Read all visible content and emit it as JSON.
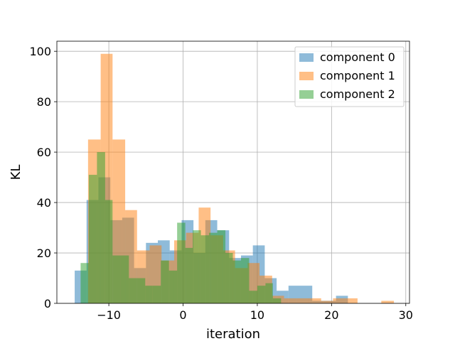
{
  "chart_data": {
    "type": "bar",
    "subtype": "overlapping-histogram",
    "title": "",
    "xlabel": "iteration",
    "ylabel": "KL",
    "xlim": [
      -17,
      30.5
    ],
    "ylim": [
      0,
      104
    ],
    "xticks": [
      -10,
      0,
      10,
      20,
      30
    ],
    "xtick_labels": [
      "−10",
      "0",
      "10",
      "20",
      "30"
    ],
    "yticks": [
      0,
      20,
      40,
      60,
      80,
      100
    ],
    "ytick_labels": [
      "0",
      "20",
      "40",
      "60",
      "80",
      "100"
    ],
    "grid": true,
    "legend_position": "top-right",
    "bar_alpha": 0.5,
    "series": [
      {
        "name": "component 0",
        "color": "#1f77b4",
        "bins": [
          {
            "x0": -14.6,
            "x1": -13.0,
            "y": 13
          },
          {
            "x0": -13.0,
            "x1": -11.4,
            "y": 41
          },
          {
            "x0": -11.4,
            "x1": -9.8,
            "y": 50
          },
          {
            "x0": -9.8,
            "x1": -8.2,
            "y": 33
          },
          {
            "x0": -8.2,
            "x1": -6.6,
            "y": 34
          },
          {
            "x0": -6.6,
            "x1": -5.0,
            "y": 14
          },
          {
            "x0": -5.0,
            "x1": -3.4,
            "y": 24
          },
          {
            "x0": -3.4,
            "x1": -1.8,
            "y": 25
          },
          {
            "x0": -1.8,
            "x1": -0.2,
            "y": 21
          },
          {
            "x0": -0.2,
            "x1": 1.4,
            "y": 33
          },
          {
            "x0": 1.4,
            "x1": 3.0,
            "y": 20
          },
          {
            "x0": 3.0,
            "x1": 4.6,
            "y": 33
          },
          {
            "x0": 4.6,
            "x1": 6.2,
            "y": 29
          },
          {
            "x0": 6.2,
            "x1": 7.8,
            "y": 18
          },
          {
            "x0": 7.8,
            "x1": 9.4,
            "y": 19
          },
          {
            "x0": 9.4,
            "x1": 11.0,
            "y": 23
          },
          {
            "x0": 11.0,
            "x1": 12.6,
            "y": 10
          },
          {
            "x0": 12.6,
            "x1": 14.2,
            "y": 5
          },
          {
            "x0": 14.2,
            "x1": 15.8,
            "y": 7
          },
          {
            "x0": 15.8,
            "x1": 17.4,
            "y": 7
          },
          {
            "x0": 17.4,
            "x1": 19.0,
            "y": 1
          },
          {
            "x0": 19.0,
            "x1": 20.6,
            "y": 1
          },
          {
            "x0": 20.6,
            "x1": 22.2,
            "y": 3
          }
        ]
      },
      {
        "name": "component 1",
        "color": "#ff7f0e",
        "bins": [
          {
            "x0": -12.8,
            "x1": -11.1,
            "y": 65
          },
          {
            "x0": -11.1,
            "x1": -9.5,
            "y": 99
          },
          {
            "x0": -9.5,
            "x1": -7.8,
            "y": 65
          },
          {
            "x0": -7.8,
            "x1": -6.2,
            "y": 37
          },
          {
            "x0": -6.2,
            "x1": -4.5,
            "y": 21
          },
          {
            "x0": -4.5,
            "x1": -2.9,
            "y": 23
          },
          {
            "x0": -2.9,
            "x1": -1.2,
            "y": 17
          },
          {
            "x0": -1.2,
            "x1": 0.4,
            "y": 25
          },
          {
            "x0": 0.4,
            "x1": 2.1,
            "y": 28
          },
          {
            "x0": 2.1,
            "x1": 3.7,
            "y": 38
          },
          {
            "x0": 3.7,
            "x1": 5.4,
            "y": 27
          },
          {
            "x0": 5.4,
            "x1": 7.0,
            "y": 21
          },
          {
            "x0": 7.0,
            "x1": 8.7,
            "y": 14
          },
          {
            "x0": 8.7,
            "x1": 10.3,
            "y": 16
          },
          {
            "x0": 10.3,
            "x1": 12.0,
            "y": 11
          },
          {
            "x0": 12.0,
            "x1": 13.6,
            "y": 3
          },
          {
            "x0": 13.6,
            "x1": 15.3,
            "y": 2
          },
          {
            "x0": 15.3,
            "x1": 16.9,
            "y": 2
          },
          {
            "x0": 16.9,
            "x1": 18.6,
            "y": 2
          },
          {
            "x0": 18.6,
            "x1": 20.2,
            "y": 1
          },
          {
            "x0": 20.2,
            "x1": 21.9,
            "y": 2
          },
          {
            "x0": 21.9,
            "x1": 23.5,
            "y": 2
          },
          {
            "x0": 26.7,
            "x1": 28.4,
            "y": 1
          }
        ]
      },
      {
        "name": "component 2",
        "color": "#2ca02c",
        "bins": [
          {
            "x0": -13.8,
            "x1": -12.7,
            "y": 16
          },
          {
            "x0": -12.7,
            "x1": -11.6,
            "y": 51
          },
          {
            "x0": -11.6,
            "x1": -10.5,
            "y": 60
          },
          {
            "x0": -10.5,
            "x1": -9.5,
            "y": 41
          },
          {
            "x0": -9.5,
            "x1": -8.4,
            "y": 19
          },
          {
            "x0": -8.4,
            "x1": -7.3,
            "y": 19
          },
          {
            "x0": -7.3,
            "x1": -6.2,
            "y": 10
          },
          {
            "x0": -6.2,
            "x1": -5.1,
            "y": 10
          },
          {
            "x0": -5.1,
            "x1": -4.1,
            "y": 7
          },
          {
            "x0": -4.1,
            "x1": -3.0,
            "y": 7
          },
          {
            "x0": -3.0,
            "x1": -1.9,
            "y": 17
          },
          {
            "x0": -1.9,
            "x1": -0.8,
            "y": 13
          },
          {
            "x0": -0.8,
            "x1": 0.3,
            "y": 32
          },
          {
            "x0": 0.3,
            "x1": 1.3,
            "y": 22
          },
          {
            "x0": 1.3,
            "x1": 2.4,
            "y": 29
          },
          {
            "x0": 2.4,
            "x1": 3.5,
            "y": 27
          },
          {
            "x0": 3.5,
            "x1": 4.6,
            "y": 28
          },
          {
            "x0": 4.6,
            "x1": 5.7,
            "y": 29
          },
          {
            "x0": 5.7,
            "x1": 6.7,
            "y": 20
          },
          {
            "x0": 6.7,
            "x1": 7.8,
            "y": 17
          },
          {
            "x0": 7.8,
            "x1": 8.9,
            "y": 18
          },
          {
            "x0": 8.9,
            "x1": 10.0,
            "y": 5
          },
          {
            "x0": 10.0,
            "x1": 11.1,
            "y": 7
          },
          {
            "x0": 11.1,
            "x1": 12.1,
            "y": 8
          },
          {
            "x0": 12.1,
            "x1": 13.2,
            "y": 2
          }
        ]
      }
    ]
  }
}
